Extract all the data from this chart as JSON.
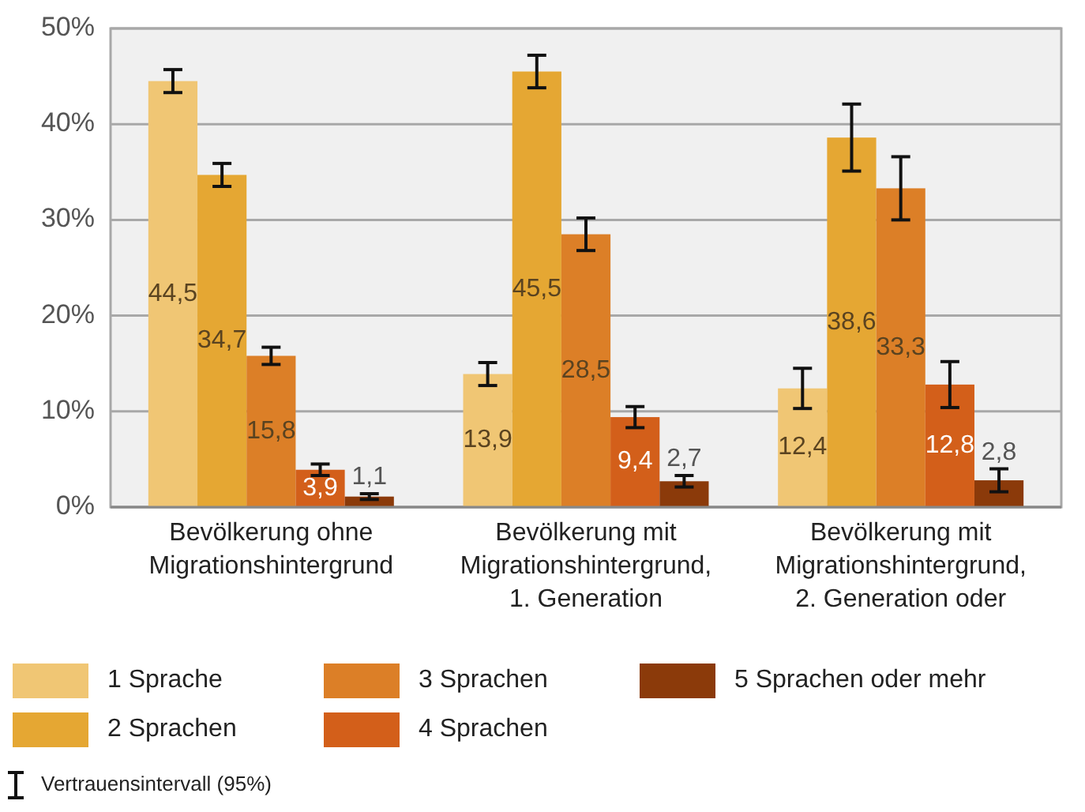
{
  "chart_data": {
    "type": "bar",
    "categories": [
      "Bevölkerung ohne Migrationshintergrund",
      "Bevölkerung mit Migrationshintergrund, 1. Generation",
      "Bevölkerung mit Migrationshintergrund, 2. Generation oder"
    ],
    "series": [
      {
        "name": "1 Sprache",
        "color": "#f0c674",
        "values": [
          44.5,
          13.9,
          12.4
        ],
        "errors": [
          1.2,
          1.2,
          2.1
        ],
        "value_labels": [
          "44,5",
          "13,9",
          "12,4"
        ]
      },
      {
        "name": "2 Sprachen",
        "color": "#e5a733",
        "values": [
          34.7,
          45.5,
          38.6
        ],
        "errors": [
          1.2,
          1.7,
          3.5
        ],
        "value_labels": [
          "34,7",
          "45,5",
          "38,6"
        ]
      },
      {
        "name": "3 Sprachen",
        "color": "#dc7f27",
        "values": [
          15.8,
          28.5,
          33.3
        ],
        "errors": [
          0.9,
          1.7,
          3.3
        ],
        "value_labels": [
          "15,8",
          "28,5",
          "33,3"
        ]
      },
      {
        "name": "4 Sprachen",
        "color": "#d35f1a",
        "values": [
          3.9,
          9.4,
          12.8
        ],
        "errors": [
          0.6,
          1.1,
          2.4
        ],
        "value_labels": [
          "3,9",
          "9,4",
          "12,8"
        ]
      },
      {
        "name": "5 Sprachen oder mehr",
        "color": "#8b3a0a",
        "values": [
          1.1,
          2.7,
          2.8
        ],
        "errors": [
          0.3,
          0.6,
          1.2
        ],
        "value_labels": [
          "1,1",
          "2,7",
          "2,8"
        ]
      }
    ],
    "ylim": [
      0,
      50
    ],
    "yticks": [
      {
        "value": 0,
        "label": "0%"
      },
      {
        "value": 10,
        "label": "10%"
      },
      {
        "value": 20,
        "label": "20%"
      },
      {
        "value": 30,
        "label": "30%"
      },
      {
        "value": 40,
        "label": "40%"
      },
      {
        "value": 50,
        "label": "50%"
      }
    ],
    "grid": "y",
    "legend": "bottom",
    "annotations": [
      "Vertrauensintervall (95%)"
    ]
  }
}
